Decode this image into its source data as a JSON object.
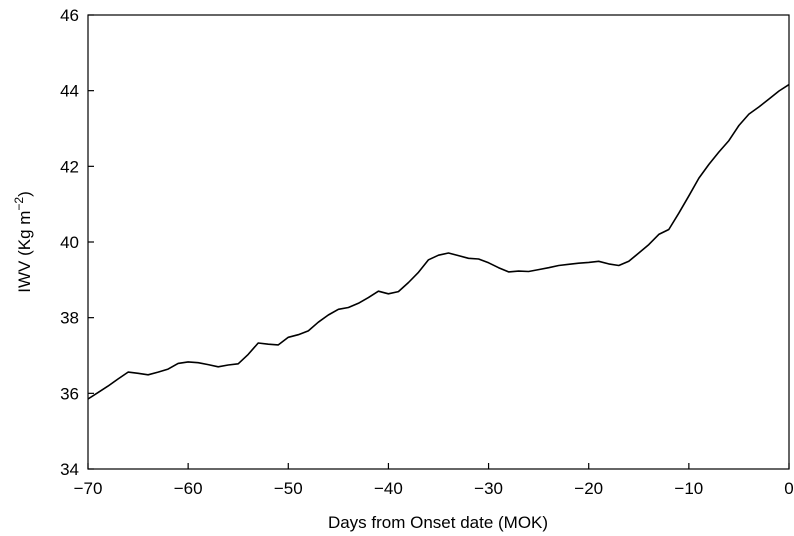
{
  "chart_data": {
    "type": "line",
    "xlabel": "Days from Onset date (MOK)",
    "ylabel_main": "IWV (Kg m",
    "ylabel_sup": "−2",
    "ylabel_close": ")",
    "xlim": [
      -70,
      0
    ],
    "ylim": [
      34,
      46
    ],
    "xticks": [
      -70,
      -60,
      -50,
      -40,
      -30,
      -20,
      -10,
      0
    ],
    "xtick_labels": [
      "−70",
      "−60",
      "−50",
      "−40",
      "−30",
      "−20",
      "−10",
      "0"
    ],
    "yticks": [
      34,
      36,
      38,
      40,
      42,
      44,
      46
    ],
    "ytick_labels": [
      "34",
      "36",
      "38",
      "40",
      "42",
      "44",
      "46"
    ],
    "grid": false,
    "line_color": "#000000",
    "series": [
      {
        "x": [
          -70,
          -69,
          -68,
          -67,
          -66,
          -65,
          -64,
          -63,
          -62,
          -61,
          -60,
          -59,
          -58,
          -57,
          -56,
          -55,
          -54,
          -53,
          -52,
          -51,
          -50,
          -49,
          -48,
          -47,
          -46,
          -45,
          -44,
          -43,
          -42,
          -41,
          -40,
          -39,
          -38,
          -37,
          -36,
          -35,
          -34,
          -33,
          -32,
          -31,
          -30,
          -29,
          -28,
          -27,
          -26,
          -25,
          -24,
          -23,
          -22,
          -21,
          -20,
          -19,
          -18,
          -17,
          -16,
          -15,
          -14,
          -13,
          -12,
          -11,
          -10,
          -9,
          -8,
          -7,
          -6,
          -5,
          -4,
          -3,
          -2,
          -1,
          0
        ],
        "y": [
          35.85,
          36.02,
          36.19,
          36.38,
          36.56,
          36.53,
          36.49,
          36.56,
          36.64,
          36.79,
          36.83,
          36.81,
          36.76,
          36.7,
          36.75,
          36.78,
          37.03,
          37.33,
          37.3,
          37.28,
          37.48,
          37.55,
          37.65,
          37.88,
          38.07,
          38.22,
          38.27,
          38.38,
          38.53,
          38.7,
          38.63,
          38.69,
          38.93,
          39.2,
          39.53,
          39.65,
          39.71,
          39.64,
          39.57,
          39.55,
          39.45,
          39.32,
          39.21,
          39.23,
          39.22,
          39.27,
          39.32,
          39.38,
          39.41,
          39.44,
          39.46,
          39.49,
          39.42,
          39.38,
          39.49,
          39.71,
          39.93,
          40.2,
          40.33,
          40.76,
          41.22,
          41.69,
          42.05,
          42.38,
          42.68,
          43.08,
          43.38,
          43.57,
          43.78,
          43.99,
          44.16
        ]
      }
    ]
  }
}
